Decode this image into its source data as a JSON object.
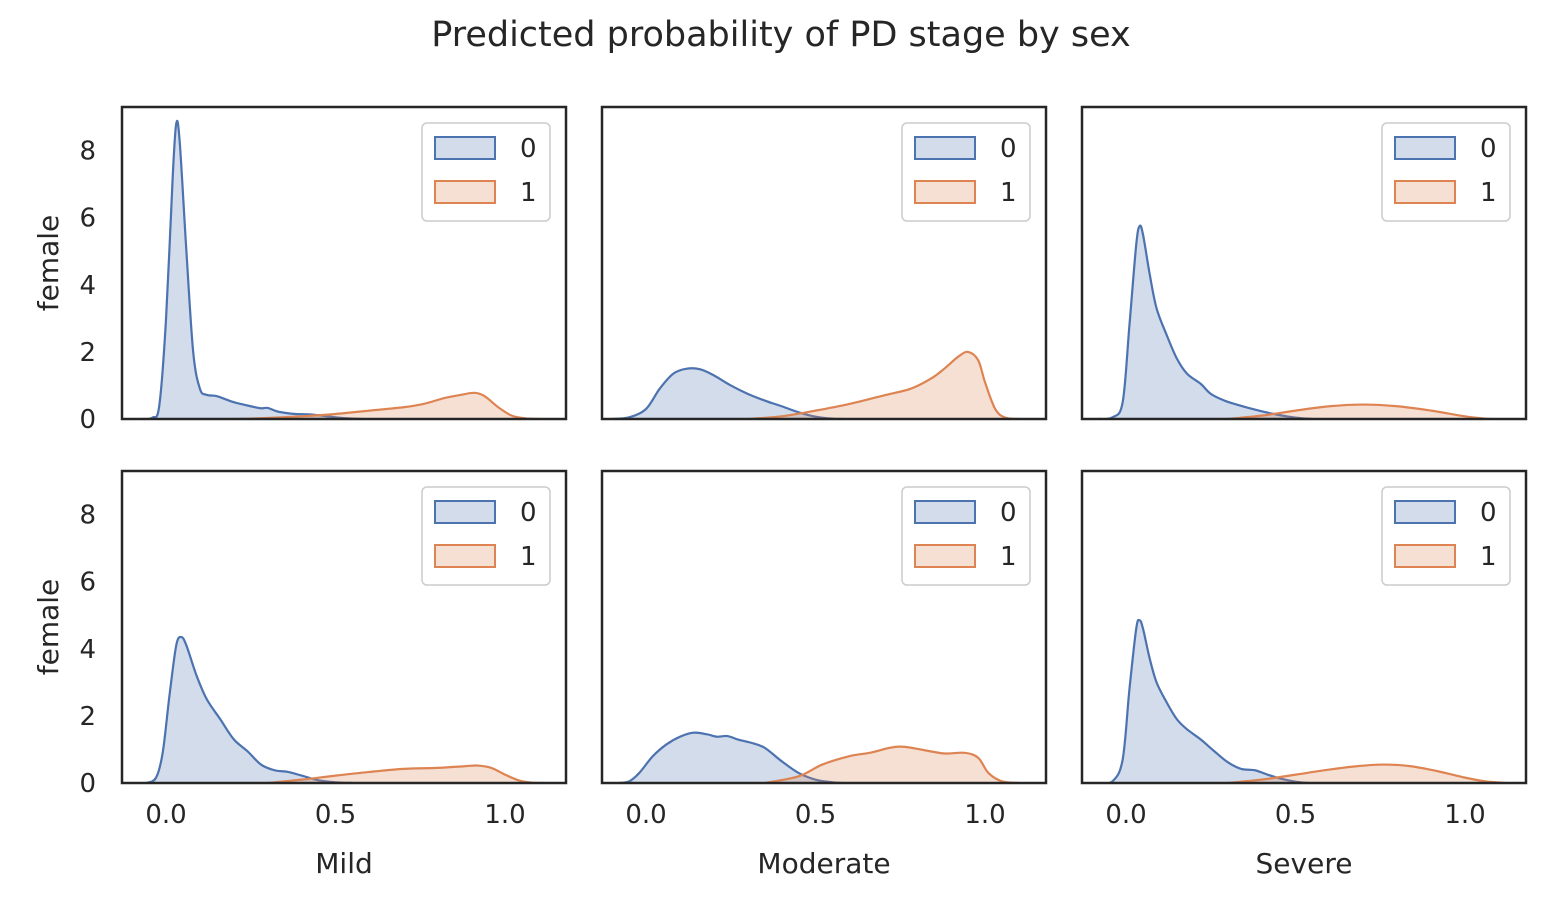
{
  "figure": {
    "title": "Predicted probability of PD stage by sex"
  },
  "colors": {
    "series_0": "#4c72b0",
    "series_1": "#dd8452",
    "axes": "#262626",
    "background": "#ffffff"
  },
  "chart_data": {
    "type": "area",
    "chart_kind": "kde-density",
    "grid": false,
    "legend_placement": "upper right",
    "shared_xlim": [
      -0.13,
      1.18
    ],
    "shared_ylim": [
      0,
      9.3
    ],
    "x_ticks": [
      "0.0",
      "0.5",
      "1.0"
    ],
    "x_tick_values": [
      0.0,
      0.5,
      1.0
    ],
    "y_ticks": [
      "0",
      "2",
      "4",
      "6",
      "8"
    ],
    "y_tick_values": [
      0,
      2,
      4,
      6,
      8
    ],
    "legend_entries": [
      "0",
      "1"
    ],
    "panels": [
      {
        "id": "mild-row1",
        "row": 0,
        "col": 0,
        "xlabel": "",
        "ylabel": "female",
        "show_xticks": false,
        "show_yticks": true,
        "series": [
          {
            "name": "0",
            "points": [
              [
                -0.07,
                0
              ],
              [
                -0.04,
                0.04
              ],
              [
                -0.02,
                0.4
              ],
              [
                0.0,
                3.0
              ],
              [
                0.02,
                7.3
              ],
              [
                0.03,
                8.8
              ],
              [
                0.04,
                8.3
              ],
              [
                0.06,
                5.0
              ],
              [
                0.08,
                2.0
              ],
              [
                0.1,
                0.9
              ],
              [
                0.12,
                0.72
              ],
              [
                0.15,
                0.68
              ],
              [
                0.2,
                0.5
              ],
              [
                0.25,
                0.38
              ],
              [
                0.28,
                0.32
              ],
              [
                0.3,
                0.33
              ],
              [
                0.33,
                0.22
              ],
              [
                0.38,
                0.15
              ],
              [
                0.42,
                0.14
              ],
              [
                0.46,
                0.1
              ],
              [
                0.5,
                0.05
              ],
              [
                0.55,
                0.01
              ],
              [
                0.58,
                0
              ]
            ]
          },
          {
            "name": "1",
            "points": [
              [
                0.2,
                0
              ],
              [
                0.3,
                0.03
              ],
              [
                0.4,
                0.08
              ],
              [
                0.5,
                0.15
              ],
              [
                0.6,
                0.25
              ],
              [
                0.7,
                0.35
              ],
              [
                0.76,
                0.45
              ],
              [
                0.82,
                0.62
              ],
              [
                0.87,
                0.72
              ],
              [
                0.91,
                0.78
              ],
              [
                0.94,
                0.68
              ],
              [
                0.98,
                0.35
              ],
              [
                1.02,
                0.1
              ],
              [
                1.06,
                0.02
              ],
              [
                1.1,
                0
              ]
            ]
          }
        ]
      },
      {
        "id": "moderate-row1",
        "row": 0,
        "col": 1,
        "xlabel": "",
        "ylabel": "",
        "show_xticks": false,
        "show_yticks": false,
        "series": [
          {
            "name": "0",
            "points": [
              [
                -0.1,
                0
              ],
              [
                -0.05,
                0.05
              ],
              [
                0.0,
                0.3
              ],
              [
                0.04,
                0.9
              ],
              [
                0.08,
                1.35
              ],
              [
                0.12,
                1.5
              ],
              [
                0.16,
                1.48
              ],
              [
                0.2,
                1.3
              ],
              [
                0.25,
                1.0
              ],
              [
                0.3,
                0.75
              ],
              [
                0.35,
                0.55
              ],
              [
                0.4,
                0.38
              ],
              [
                0.45,
                0.2
              ],
              [
                0.5,
                0.07
              ],
              [
                0.55,
                0.01
              ],
              [
                0.58,
                0
              ]
            ]
          },
          {
            "name": "1",
            "points": [
              [
                0.3,
                0
              ],
              [
                0.4,
                0.08
              ],
              [
                0.5,
                0.25
              ],
              [
                0.6,
                0.45
              ],
              [
                0.7,
                0.7
              ],
              [
                0.78,
                0.9
              ],
              [
                0.84,
                1.2
              ],
              [
                0.88,
                1.5
              ],
              [
                0.92,
                1.85
              ],
              [
                0.95,
                2.0
              ],
              [
                0.98,
                1.75
              ],
              [
                1.0,
                1.1
              ],
              [
                1.03,
                0.3
              ],
              [
                1.06,
                0.04
              ],
              [
                1.1,
                0
              ]
            ]
          }
        ]
      },
      {
        "id": "severe-row1",
        "row": 0,
        "col": 2,
        "xlabel": "",
        "ylabel": "",
        "show_xticks": false,
        "show_yticks": false,
        "series": [
          {
            "name": "0",
            "points": [
              [
                -0.08,
                0
              ],
              [
                -0.04,
                0.05
              ],
              [
                -0.01,
                0.5
              ],
              [
                0.01,
                2.8
              ],
              [
                0.03,
                5.2
              ],
              [
                0.04,
                5.75
              ],
              [
                0.05,
                5.5
              ],
              [
                0.07,
                4.3
              ],
              [
                0.09,
                3.3
              ],
              [
                0.12,
                2.5
              ],
              [
                0.15,
                1.8
              ],
              [
                0.18,
                1.35
              ],
              [
                0.22,
                1.05
              ],
              [
                0.25,
                0.75
              ],
              [
                0.29,
                0.55
              ],
              [
                0.33,
                0.42
              ],
              [
                0.38,
                0.28
              ],
              [
                0.43,
                0.16
              ],
              [
                0.48,
                0.07
              ],
              [
                0.52,
                0.02
              ],
              [
                0.55,
                0
              ]
            ]
          },
          {
            "name": "1",
            "points": [
              [
                0.3,
                0
              ],
              [
                0.4,
                0.1
              ],
              [
                0.5,
                0.25
              ],
              [
                0.6,
                0.38
              ],
              [
                0.7,
                0.43
              ],
              [
                0.8,
                0.38
              ],
              [
                0.9,
                0.25
              ],
              [
                1.0,
                0.08
              ],
              [
                1.06,
                0.01
              ],
              [
                1.08,
                0
              ]
            ]
          }
        ]
      },
      {
        "id": "mild-row2",
        "row": 1,
        "col": 0,
        "xlabel": "Mild",
        "ylabel": "female",
        "show_xticks": true,
        "show_yticks": true,
        "series": [
          {
            "name": "0",
            "points": [
              [
                -0.06,
                0
              ],
              [
                -0.03,
                0.15
              ],
              [
                -0.01,
                0.9
              ],
              [
                0.01,
                2.6
              ],
              [
                0.03,
                4.1
              ],
              [
                0.045,
                4.35
              ],
              [
                0.06,
                4.1
              ],
              [
                0.09,
                3.2
              ],
              [
                0.12,
                2.5
              ],
              [
                0.16,
                1.9
              ],
              [
                0.2,
                1.3
              ],
              [
                0.24,
                0.95
              ],
              [
                0.28,
                0.55
              ],
              [
                0.32,
                0.38
              ],
              [
                0.36,
                0.33
              ],
              [
                0.4,
                0.22
              ],
              [
                0.45,
                0.08
              ],
              [
                0.5,
                0.02
              ],
              [
                0.55,
                0
              ]
            ]
          },
          {
            "name": "1",
            "points": [
              [
                0.3,
                0
              ],
              [
                0.4,
                0.1
              ],
              [
                0.5,
                0.22
              ],
              [
                0.6,
                0.33
              ],
              [
                0.7,
                0.42
              ],
              [
                0.8,
                0.45
              ],
              [
                0.88,
                0.5
              ],
              [
                0.92,
                0.52
              ],
              [
                0.96,
                0.45
              ],
              [
                1.0,
                0.25
              ],
              [
                1.04,
                0.08
              ],
              [
                1.08,
                0.01
              ],
              [
                1.12,
                0
              ]
            ]
          }
        ]
      },
      {
        "id": "moderate-row2",
        "row": 1,
        "col": 1,
        "xlabel": "Moderate",
        "ylabel": "",
        "show_xticks": true,
        "show_yticks": false,
        "series": [
          {
            "name": "0",
            "points": [
              [
                -0.08,
                0
              ],
              [
                -0.05,
                0.05
              ],
              [
                -0.02,
                0.3
              ],
              [
                0.02,
                0.8
              ],
              [
                0.06,
                1.15
              ],
              [
                0.1,
                1.38
              ],
              [
                0.14,
                1.5
              ],
              [
                0.18,
                1.45
              ],
              [
                0.21,
                1.38
              ],
              [
                0.24,
                1.4
              ],
              [
                0.27,
                1.3
              ],
              [
                0.31,
                1.2
              ],
              [
                0.35,
                1.05
              ],
              [
                0.4,
                0.65
              ],
              [
                0.45,
                0.3
              ],
              [
                0.5,
                0.1
              ],
              [
                0.55,
                0.02
              ],
              [
                0.58,
                0
              ]
            ]
          },
          {
            "name": "1",
            "points": [
              [
                0.35,
                0
              ],
              [
                0.45,
                0.2
              ],
              [
                0.52,
                0.55
              ],
              [
                0.6,
                0.8
              ],
              [
                0.66,
                0.9
              ],
              [
                0.72,
                1.05
              ],
              [
                0.76,
                1.08
              ],
              [
                0.82,
                0.98
              ],
              [
                0.88,
                0.88
              ],
              [
                0.94,
                0.9
              ],
              [
                0.98,
                0.75
              ],
              [
                1.01,
                0.3
              ],
              [
                1.05,
                0.05
              ],
              [
                1.1,
                0
              ]
            ]
          }
        ]
      },
      {
        "id": "severe-row2",
        "row": 1,
        "col": 2,
        "xlabel": "Severe",
        "ylabel": "",
        "show_xticks": true,
        "show_yticks": false,
        "series": [
          {
            "name": "0",
            "points": [
              [
                -0.08,
                0
              ],
              [
                -0.04,
                0.05
              ],
              [
                -0.01,
                0.7
              ],
              [
                0.01,
                2.8
              ],
              [
                0.03,
                4.6
              ],
              [
                0.04,
                4.85
              ],
              [
                0.05,
                4.6
              ],
              [
                0.07,
                3.7
              ],
              [
                0.09,
                3.0
              ],
              [
                0.12,
                2.4
              ],
              [
                0.15,
                1.9
              ],
              [
                0.18,
                1.6
              ],
              [
                0.22,
                1.3
              ],
              [
                0.26,
                0.95
              ],
              [
                0.3,
                0.62
              ],
              [
                0.34,
                0.42
              ],
              [
                0.38,
                0.38
              ],
              [
                0.42,
                0.24
              ],
              [
                0.46,
                0.12
              ],
              [
                0.5,
                0.04
              ],
              [
                0.54,
                0
              ]
            ]
          },
          {
            "name": "1",
            "points": [
              [
                0.3,
                0
              ],
              [
                0.4,
                0.1
              ],
              [
                0.5,
                0.25
              ],
              [
                0.6,
                0.4
              ],
              [
                0.68,
                0.5
              ],
              [
                0.76,
                0.55
              ],
              [
                0.84,
                0.5
              ],
              [
                0.92,
                0.35
              ],
              [
                1.0,
                0.16
              ],
              [
                1.06,
                0.05
              ],
              [
                1.12,
                0
              ]
            ]
          }
        ]
      }
    ]
  }
}
